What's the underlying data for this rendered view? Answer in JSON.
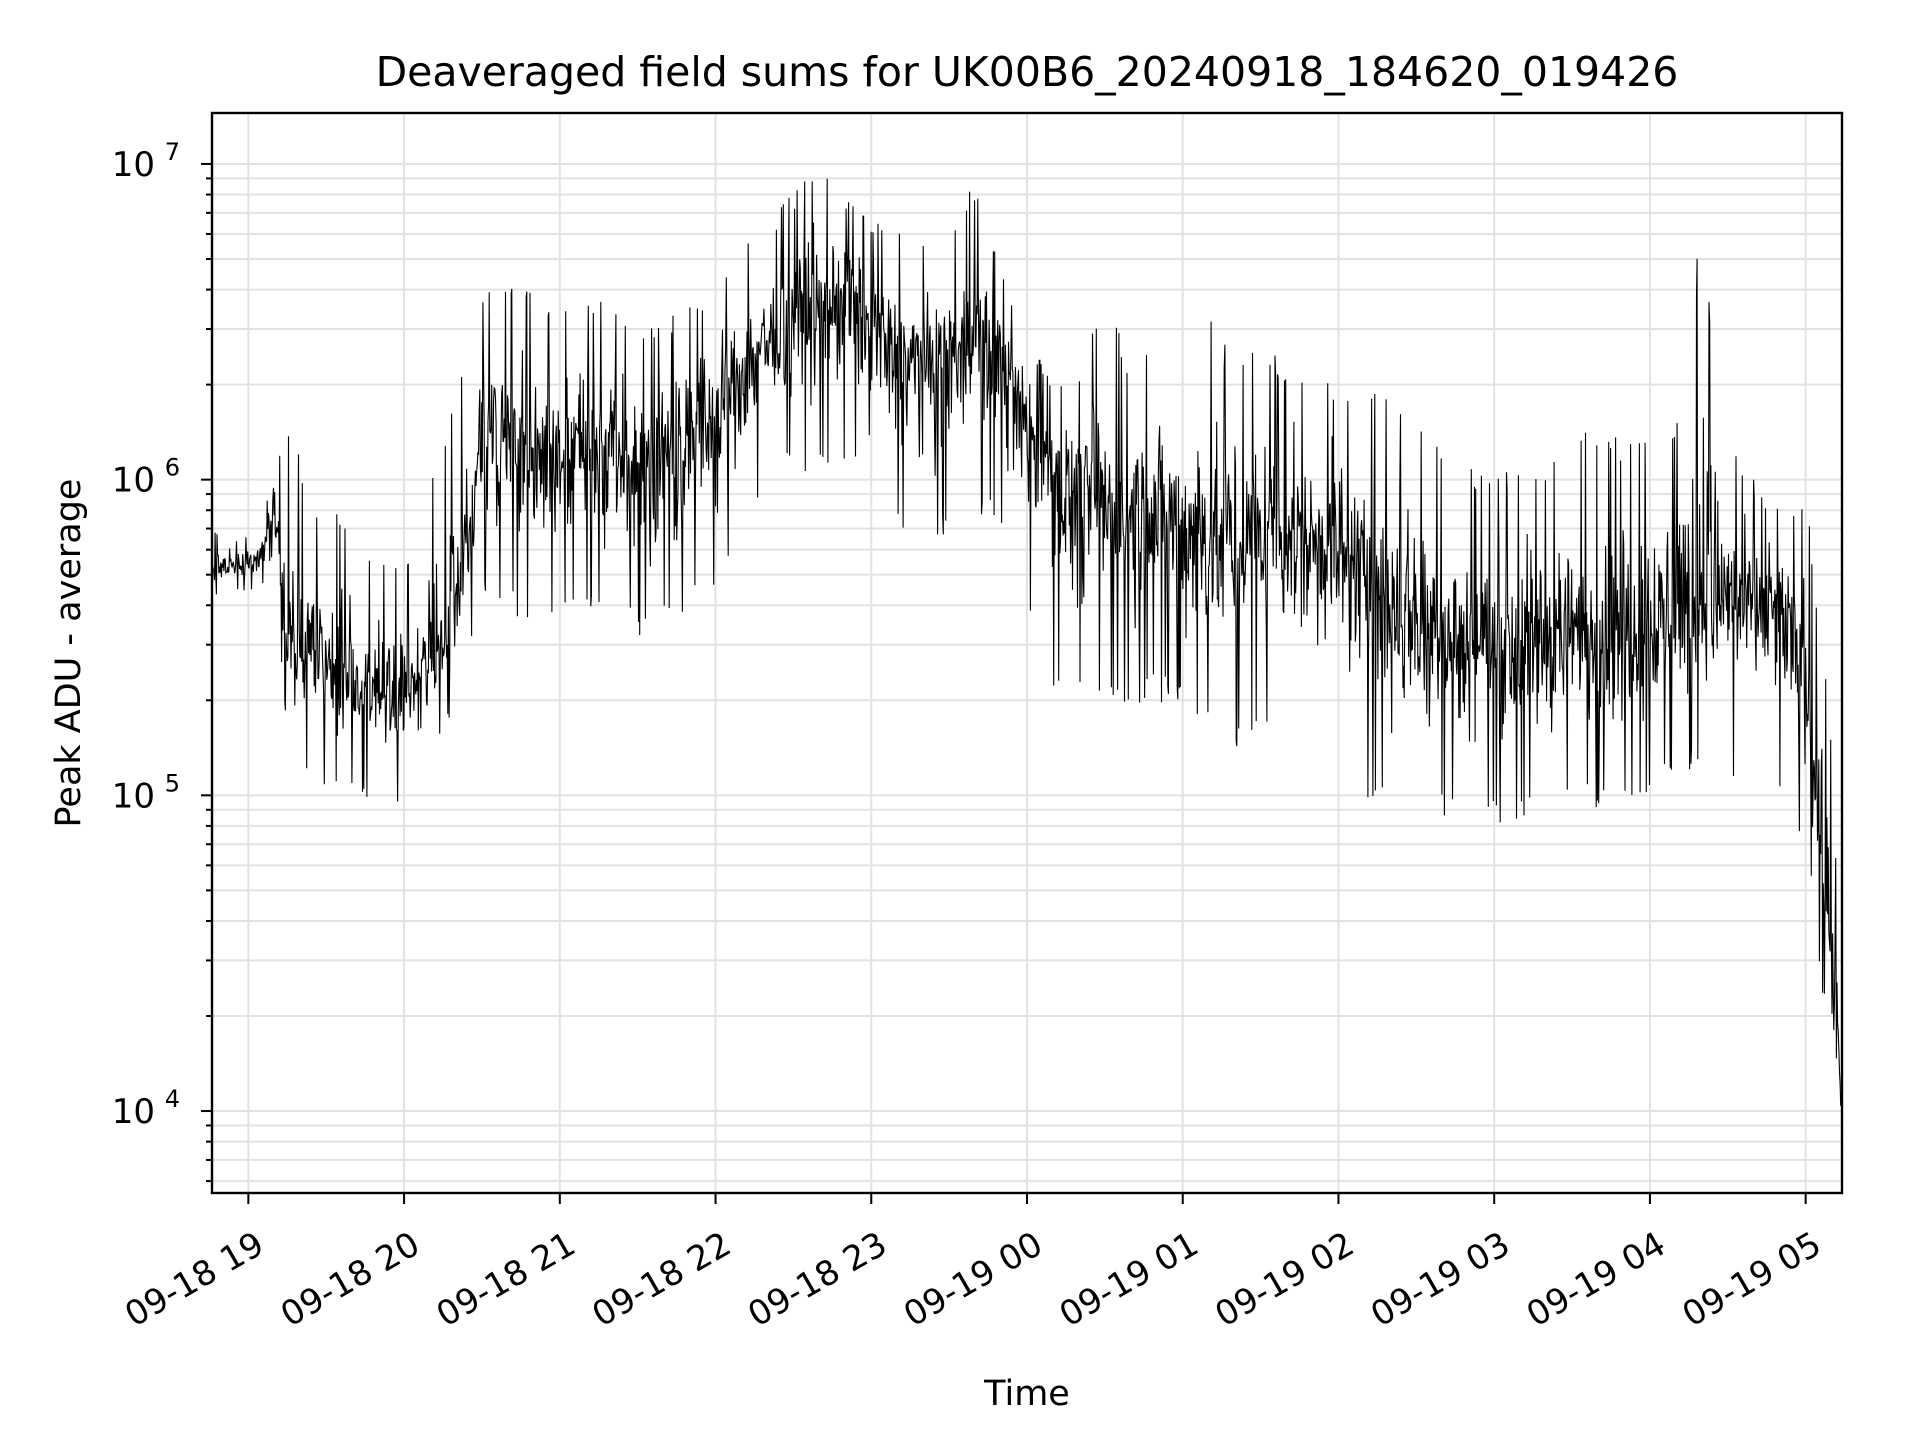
{
  "chart_data": {
    "type": "line",
    "title": "Deaveraged field sums for UK00B6_20240918_184620_019426",
    "xlabel": "Time",
    "ylabel": "Peak ADU - average",
    "yscale": "log",
    "ylim": [
      5500,
      14500000
    ],
    "xlim": [
      "2024-09-18 18:46",
      "2024-09-19 05:14"
    ],
    "grid": true,
    "x_ticks": [
      "09-18 19",
      "09-18 20",
      "09-18 21",
      "09-18 22",
      "09-18 23",
      "09-19 00",
      "09-19 01",
      "09-19 02",
      "09-19 03",
      "09-19 04",
      "09-19 05"
    ],
    "y_ticks": [
      {
        "base": "10",
        "exp": "4",
        "value": 10000
      },
      {
        "base": "10",
        "exp": "5",
        "value": 100000
      },
      {
        "base": "10",
        "exp": "6",
        "value": 1000000
      },
      {
        "base": "10",
        "exp": "7",
        "value": 10000000
      }
    ],
    "series": [
      {
        "color": "#000000",
        "x": [
          "2024-09-18 18:46",
          "2024-09-18 18:55",
          "2024-09-18 19:05",
          "2024-09-18 19:10",
          "2024-09-18 19:15",
          "2024-09-18 19:25",
          "2024-09-18 19:35",
          "2024-09-18 19:45",
          "2024-09-18 19:55",
          "2024-09-18 20:05",
          "2024-09-18 20:15",
          "2024-09-18 20:25",
          "2024-09-18 20:30",
          "2024-09-18 20:40",
          "2024-09-18 20:50",
          "2024-09-18 21:00",
          "2024-09-18 21:10",
          "2024-09-18 21:20",
          "2024-09-18 21:30",
          "2024-09-18 21:40",
          "2024-09-18 21:50",
          "2024-09-18 22:00",
          "2024-09-18 22:10",
          "2024-09-18 22:20",
          "2024-09-18 22:30",
          "2024-09-18 22:40",
          "2024-09-18 22:50",
          "2024-09-18 23:00",
          "2024-09-18 23:10",
          "2024-09-18 23:20",
          "2024-09-18 23:30",
          "2024-09-18 23:40",
          "2024-09-18 23:50",
          "2024-09-19 00:00",
          "2024-09-19 00:10",
          "2024-09-19 00:20",
          "2024-09-19 00:30",
          "2024-09-19 00:40",
          "2024-09-19 00:50",
          "2024-09-19 01:00",
          "2024-09-19 01:10",
          "2024-09-19 01:20",
          "2024-09-19 01:30",
          "2024-09-19 01:40",
          "2024-09-19 01:50",
          "2024-09-19 02:00",
          "2024-09-19 02:10",
          "2024-09-19 02:20",
          "2024-09-19 02:30",
          "2024-09-19 02:40",
          "2024-09-19 02:50",
          "2024-09-19 03:00",
          "2024-09-19 03:10",
          "2024-09-19 03:20",
          "2024-09-19 03:30",
          "2024-09-19 03:40",
          "2024-09-19 03:50",
          "2024-09-19 04:00",
          "2024-09-19 04:10",
          "2024-09-19 04:20",
          "2024-09-19 04:30",
          "2024-09-19 04:40",
          "2024-09-19 04:50",
          "2024-09-19 05:00",
          "2024-09-19 05:05",
          "2024-09-19 05:10",
          "2024-09-19 05:14"
        ],
        "y": [
          520000,
          540000,
          560000,
          850000,
          330000,
          280000,
          250000,
          230000,
          210000,
          240000,
          320000,
          700000,
          1400000,
          1300000,
          1100000,
          1200000,
          1300000,
          1250000,
          1100000,
          1200000,
          1300000,
          1600000,
          2200000,
          2800000,
          3200000,
          3500000,
          3800000,
          3000000,
          2500000,
          2300000,
          2500000,
          2800000,
          2400000,
          1500000,
          1100000,
          900000,
          850000,
          800000,
          850000,
          700000,
          650000,
          600000,
          650000,
          700000,
          650000,
          600000,
          500000,
          400000,
          380000,
          330000,
          300000,
          290000,
          280000,
          300000,
          330000,
          320000,
          340000,
          360000,
          400000,
          450000,
          430000,
          400000,
          380000,
          250000,
          90000,
          30000,
          9000
        ],
        "y_min": [
          430000,
          440000,
          450000,
          600000,
          140000,
          110000,
          100000,
          95000,
          90000,
          100000,
          150000,
          250000,
          400000,
          380000,
          350000,
          350000,
          380000,
          350000,
          320000,
          340000,
          380000,
          450000,
          700000,
          900000,
          1100000,
          1000000,
          1100000,
          900000,
          700000,
          650000,
          650000,
          800000,
          700000,
          400000,
          220000,
          180000,
          200000,
          170000,
          200000,
          180000,
          160000,
          130000,
          160000,
          150000,
          130000,
          120000,
          100000,
          90000,
          80000,
          85000,
          80000,
          80000,
          85000,
          80000,
          90000,
          90000,
          90000,
          100000,
          110000,
          120000,
          110000,
          100000,
          100000,
          70000,
          30000,
          13000,
          7000
        ],
        "y_max": [
          700000,
          650000,
          700000,
          1100000,
          1700000,
          800000,
          780000,
          600000,
          520000,
          650000,
          1450000,
          2500000,
          4200000,
          4800000,
          4000000,
          3600000,
          4100000,
          3500000,
          3000000,
          3300000,
          3600000,
          4300000,
          5800000,
          6500000,
          8200000,
          10000000,
          8100000,
          6800000,
          6200000,
          6000000,
          5500000,
          9100000,
          4600000,
          3000000,
          2000000,
          2200000,
          3900000,
          2400000,
          2600000,
          2800000,
          3800000,
          2200000,
          2800000,
          2300000,
          2100000,
          2000000,
          1800000,
          2100000,
          1600000,
          1200000,
          1100000,
          1000000,
          1300000,
          1200000,
          1500000,
          1400000,
          1400000,
          1600000,
          1600000,
          6500000,
          1500000,
          1000000,
          800000,
          900000,
          400000,
          180000,
          20000
        ]
      }
    ]
  }
}
